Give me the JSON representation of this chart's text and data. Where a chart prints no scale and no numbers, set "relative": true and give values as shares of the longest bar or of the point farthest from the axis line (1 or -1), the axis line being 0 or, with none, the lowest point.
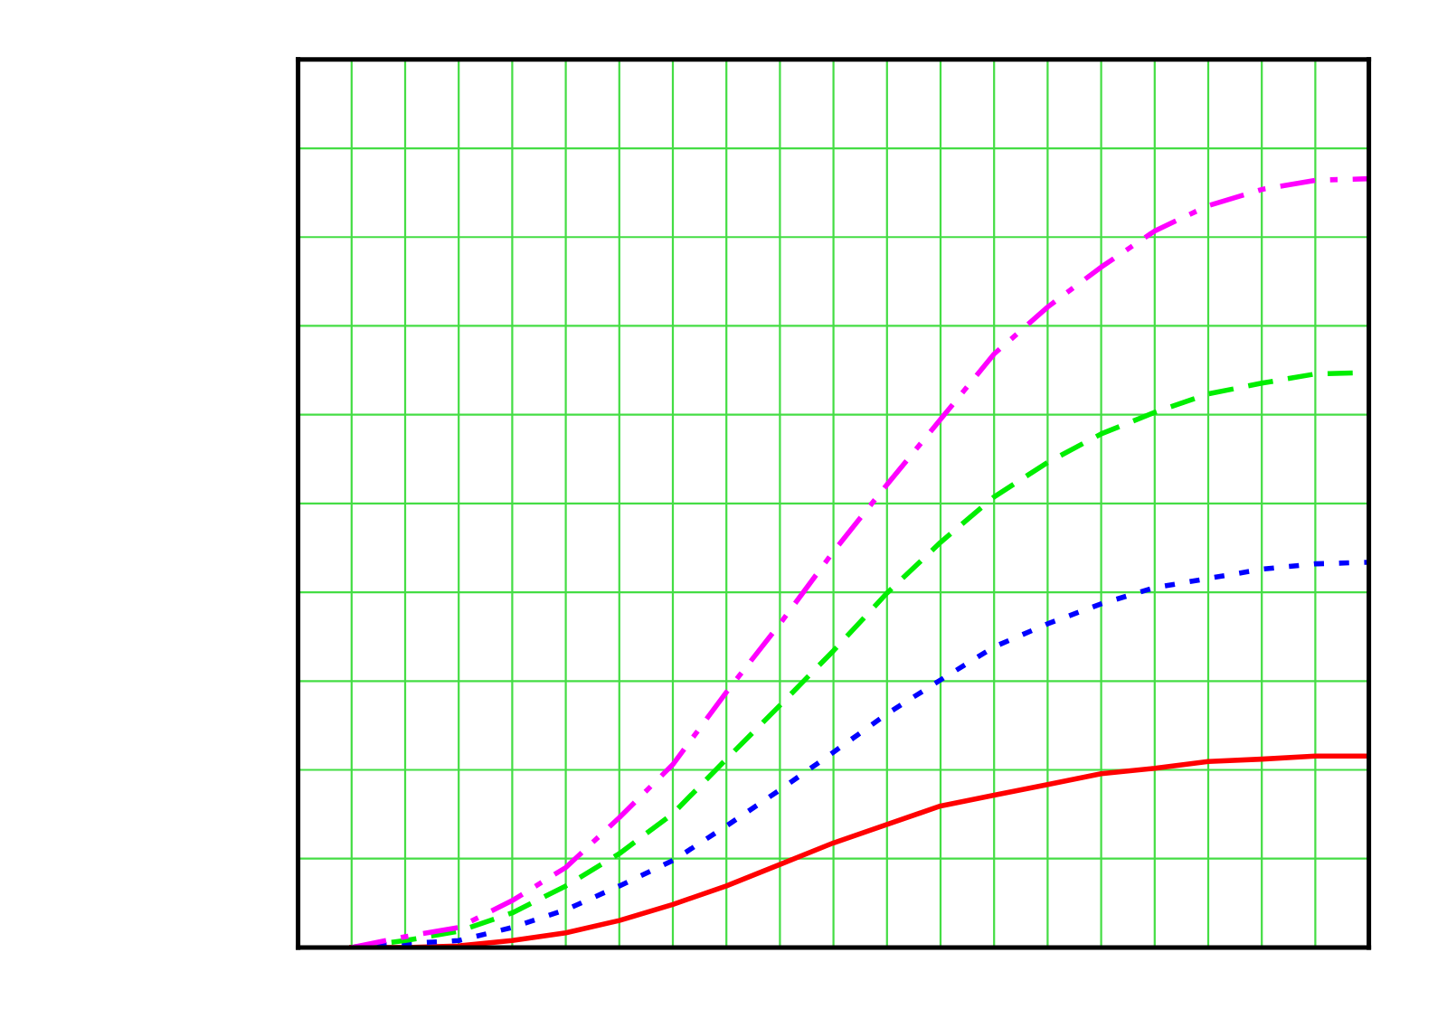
{
  "chart_data": {
    "type": "line",
    "relative": true,
    "grid": true,
    "marker": "none",
    "categories": [
      null,
      null,
      null,
      null,
      null,
      null,
      null,
      null,
      null,
      null,
      null,
      null,
      null,
      null,
      null,
      null,
      null,
      null,
      null,
      null,
      null
    ],
    "series": [
      {
        "color": "#ff0000",
        "line_style": "solid",
        "values": [
          null,
          0,
          0,
          0.002,
          0.009,
          0.019,
          0.035,
          0.056,
          0.08,
          0.108,
          0.136,
          0.16,
          0.184,
          0.198,
          0.212,
          0.226,
          0.233,
          0.242,
          0.245,
          0.249,
          0.249
        ]
      },
      {
        "color": "#0000ff",
        "line_style": "dotted",
        "values": [
          null,
          0,
          0.005,
          0.009,
          0.026,
          0.049,
          0.08,
          0.113,
          0.158,
          0.205,
          0.254,
          0.304,
          0.348,
          0.391,
          0.421,
          0.447,
          0.468,
          0.48,
          0.492,
          0.499,
          0.501
        ]
      },
      {
        "color": "#00ee00",
        "line_style": "dashed",
        "values": [
          null,
          0,
          0.009,
          0.021,
          0.045,
          0.08,
          0.122,
          0.174,
          0.245,
          0.315,
          0.386,
          0.461,
          0.527,
          0.586,
          0.631,
          0.668,
          0.696,
          0.72,
          0.734,
          0.746,
          0.748
        ]
      },
      {
        "color": "#ff00ff",
        "line_style": "dashdot",
        "values": [
          null,
          0,
          0.014,
          0.026,
          0.061,
          0.104,
          0.169,
          0.238,
          0.332,
          0.421,
          0.515,
          0.602,
          0.687,
          0.772,
          0.833,
          0.885,
          0.932,
          0.965,
          0.986,
          0.998,
          1
        ]
      }
    ]
  }
}
